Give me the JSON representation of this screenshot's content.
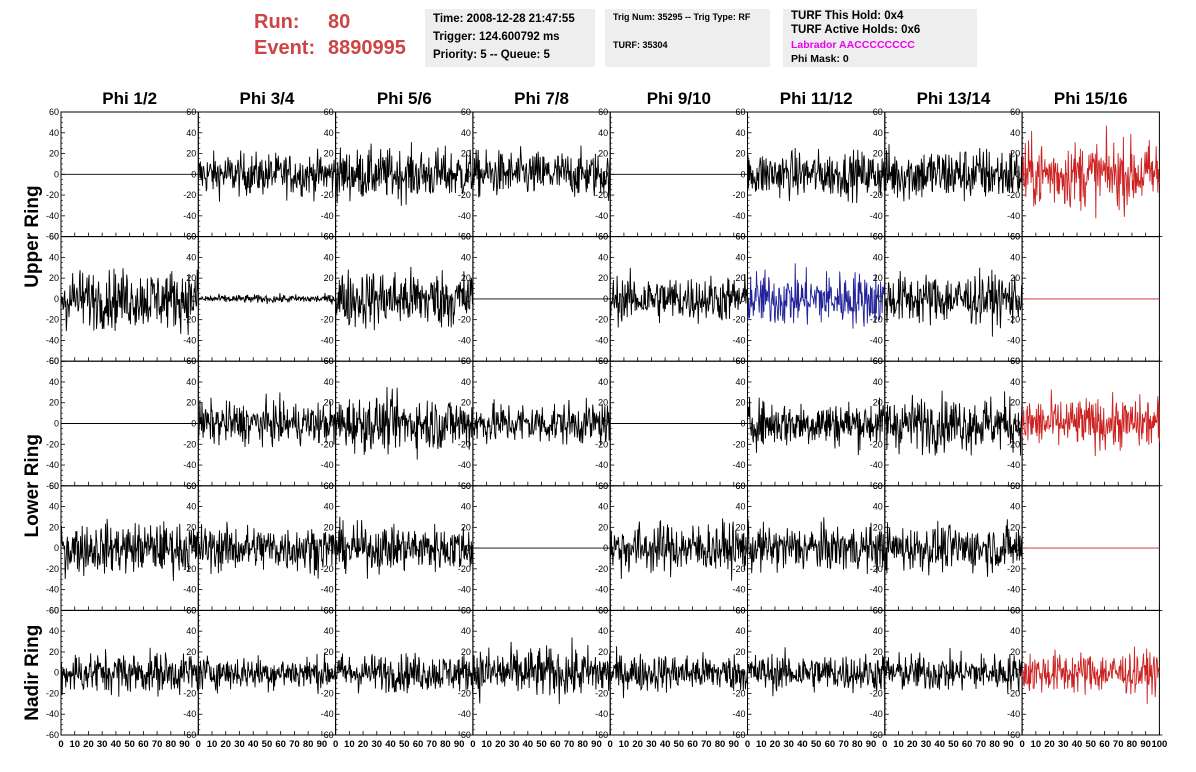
{
  "header": {
    "run_label": "Run:",
    "run_value": "80",
    "event_label": "Event:",
    "event_value": "8890995",
    "time": "Time: 2008-12-28 21:47:55",
    "trigger": "Trigger: 124.600792 ms",
    "priority": "Priority: 5 -- Queue: 5",
    "trig_num": "Trig Num: 35295 -- Trig Type: RF",
    "turf": "TURF: 35304",
    "turf_this_hold": "TURF This Hold: 0x4",
    "turf_active_holds": "TURF Active Holds: 0x6",
    "labrador": "Labrador AACCCCCCCC",
    "phi_mask": "Phi Mask: 0"
  },
  "colors": {
    "header_red": "#cc4444",
    "labrador_magenta": "#ee00ee",
    "trace_black": "#000000",
    "trace_red": "#cc2222",
    "trace_blue": "#222299",
    "panel_bg": "#eeeeee"
  },
  "chart_data": {
    "type": "line",
    "columns": [
      "Phi 1/2",
      "Phi 3/4",
      "Phi 5/6",
      "Phi 7/8",
      "Phi 9/10",
      "Phi 11/12",
      "Phi 13/14",
      "Phi 15/16"
    ],
    "ring_labels": [
      "Upper Ring",
      "Lower Ring",
      "Nadir Ring"
    ],
    "rows": 5,
    "x_ticks": [
      0,
      10,
      20,
      30,
      40,
      50,
      60,
      70,
      80,
      90,
      100
    ],
    "x_tick_labels": [
      "0",
      "10",
      "20",
      "30",
      "40",
      "50",
      "60",
      "70",
      "80",
      "90",
      "100"
    ],
    "y_ticks": [
      -60,
      -40,
      -20,
      0,
      20,
      40,
      60
    ],
    "y_tick_labels": [
      "-60",
      "-40",
      "-20",
      "0",
      "20",
      "40",
      "60"
    ],
    "xlim": [
      0,
      100
    ],
    "ylim": [
      -60,
      60
    ],
    "grid": false,
    "n_samples": 260,
    "panels": [
      [
        {
          "color": "black",
          "amp": 0,
          "flat": true
        },
        {
          "color": "black",
          "amp": 10
        },
        {
          "color": "black",
          "amp": 12
        },
        {
          "color": "black",
          "amp": 11
        },
        {
          "color": "black",
          "amp": 0,
          "flat": true
        },
        {
          "color": "black",
          "amp": 11
        },
        {
          "color": "black",
          "amp": 13
        },
        {
          "color": "red",
          "amp": 16
        }
      ],
      [
        {
          "color": "black",
          "amp": 14
        },
        {
          "color": "black",
          "amp": 2
        },
        {
          "color": "black",
          "amp": 14
        },
        {
          "color": "black",
          "amp": 0,
          "flat": true
        },
        {
          "color": "black",
          "amp": 11
        },
        {
          "color": "blue",
          "amp": 13
        },
        {
          "color": "black",
          "amp": 12
        },
        {
          "color": "red",
          "amp": 0,
          "flat": true
        }
      ],
      [
        {
          "color": "black",
          "amp": 0,
          "flat": true
        },
        {
          "color": "black",
          "amp": 10
        },
        {
          "color": "black",
          "amp": 13
        },
        {
          "color": "black",
          "amp": 10
        },
        {
          "color": "black",
          "amp": 0,
          "flat": true
        },
        {
          "color": "black",
          "amp": 11
        },
        {
          "color": "black",
          "amp": 13
        },
        {
          "color": "red",
          "amp": 12
        }
      ],
      [
        {
          "color": "black",
          "amp": 12
        },
        {
          "color": "black",
          "amp": 11
        },
        {
          "color": "black",
          "amp": 11
        },
        {
          "color": "black",
          "amp": 0,
          "flat": true
        },
        {
          "color": "black",
          "amp": 12
        },
        {
          "color": "black",
          "amp": 11
        },
        {
          "color": "black",
          "amp": 11
        },
        {
          "color": "red",
          "amp": 0,
          "flat": true
        }
      ],
      [
        {
          "color": "black",
          "amp": 10
        },
        {
          "color": "black",
          "amp": 8
        },
        {
          "color": "black",
          "amp": 9
        },
        {
          "color": "black",
          "amp": 12
        },
        {
          "color": "black",
          "amp": 9
        },
        {
          "color": "black",
          "amp": 9
        },
        {
          "color": "black",
          "amp": 9
        },
        {
          "color": "red",
          "amp": 10
        }
      ]
    ]
  }
}
